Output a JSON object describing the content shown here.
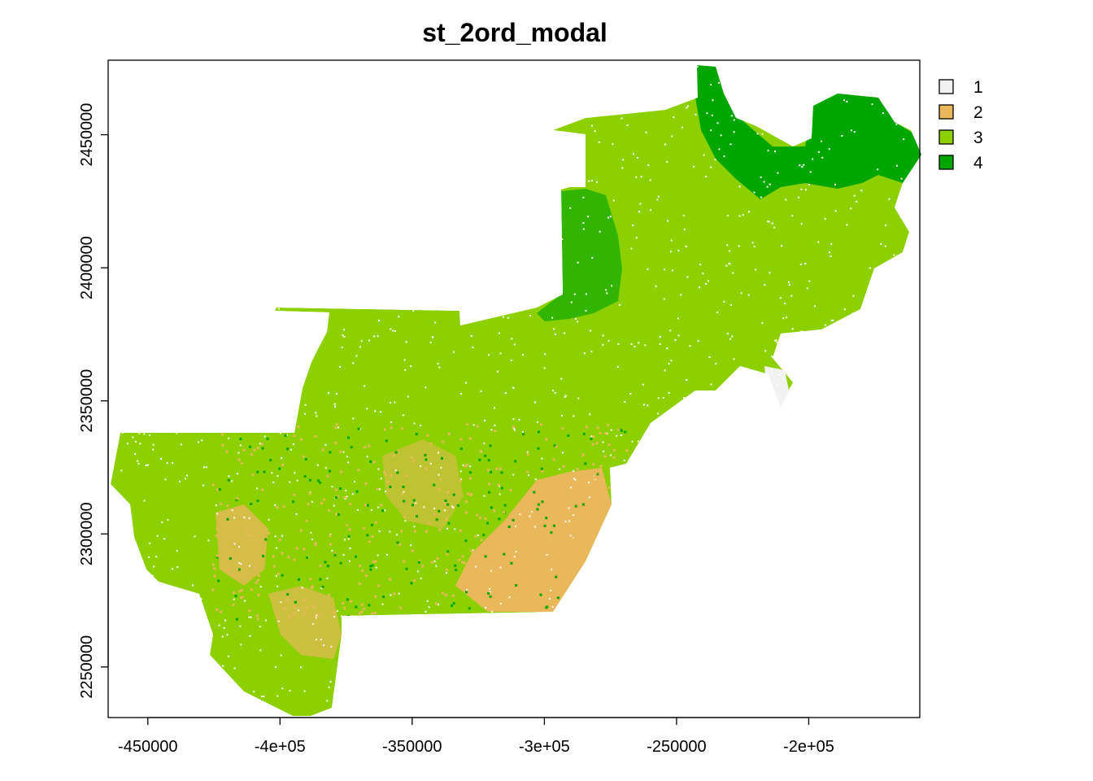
{
  "title": "st_2ord_modal",
  "x_axis": {
    "ticks": [
      {
        "value": -450000,
        "label": "-450000"
      },
      {
        "value": -400000,
        "label": "-4e+05"
      },
      {
        "value": -350000,
        "label": "-350000"
      },
      {
        "value": -300000,
        "label": "-3e+05"
      },
      {
        "value": -250000,
        "label": "-250000"
      },
      {
        "value": -200000,
        "label": "-2e+05"
      }
    ],
    "range": [
      -465000,
      -158000
    ]
  },
  "y_axis": {
    "ticks": [
      {
        "value": 2250000,
        "label": "2250000"
      },
      {
        "value": 2300000,
        "label": "2300000"
      },
      {
        "value": 2350000,
        "label": "2350000"
      },
      {
        "value": 2400000,
        "label": "2400000"
      },
      {
        "value": 2450000,
        "label": "2450000"
      }
    ],
    "range": [
      2231000,
      2478000
    ]
  },
  "legend": {
    "placement": "top-right",
    "items": [
      {
        "label": "1",
        "color": "#f2f2f2"
      },
      {
        "label": "2",
        "color": "#e8b85a"
      },
      {
        "label": "3",
        "color": "#8cd000"
      },
      {
        "label": "4",
        "color": "#00a600"
      }
    ]
  }
}
